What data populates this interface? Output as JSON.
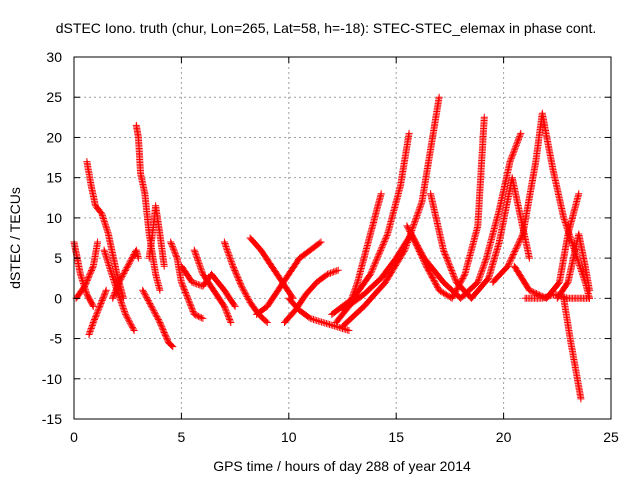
{
  "chart_data": {
    "type": "scatter",
    "title": "dSTEC Iono. truth (chur, Lon=265, Lat=58, h=-18): STEC-STEC_elemax in phase cont.",
    "xlabel": "GPS time / hours of day 288 of year 2014",
    "ylabel": "dSTEC  / TECUs",
    "xlim": [
      0,
      25
    ],
    "ylim": [
      -15,
      30
    ],
    "xticks": [
      0,
      5,
      10,
      15,
      20,
      25
    ],
    "yticks": [
      -15,
      -10,
      -5,
      0,
      5,
      10,
      15,
      20,
      25,
      30
    ],
    "grid": true,
    "marker": "+",
    "color": "#ff0000",
    "series": [
      {
        "x": [
          0.0,
          0.3,
          0.6,
          0.9
        ],
        "y": [
          7.0,
          3.0,
          0.5,
          -1.0
        ]
      },
      {
        "x": [
          0.1,
          0.5,
          0.9,
          1.1
        ],
        "y": [
          0.0,
          1.5,
          4.0,
          7.0
        ]
      },
      {
        "x": [
          0.6,
          0.8,
          1.0,
          1.3,
          1.6,
          2.0,
          2.3
        ],
        "y": [
          17.0,
          14.0,
          11.5,
          10.5,
          8.0,
          3.0,
          0.0
        ]
      },
      {
        "x": [
          0.7,
          0.9,
          1.2,
          1.5
        ],
        "y": [
          -4.5,
          -3.0,
          -1.0,
          1.0
        ]
      },
      {
        "x": [
          1.4,
          1.7,
          2.0,
          2.4,
          2.8
        ],
        "y": [
          6.0,
          3.5,
          1.0,
          -2.0,
          -4.0
        ]
      },
      {
        "x": [
          1.8,
          2.1,
          2.5,
          2.9,
          3.0
        ],
        "y": [
          0.0,
          2.0,
          4.0,
          6.0,
          5.0
        ]
      },
      {
        "x": [
          2.9,
          3.0,
          3.1,
          3.3,
          3.5,
          3.8,
          4.0
        ],
        "y": [
          21.5,
          20.0,
          15.5,
          13.0,
          8.0,
          3.0,
          1.0
        ]
      },
      {
        "x": [
          3.5,
          3.7,
          3.8,
          4.0,
          4.2
        ],
        "y": [
          5.0,
          9.0,
          11.5,
          8.0,
          4.0
        ]
      },
      {
        "x": [
          3.2,
          3.6,
          4.0,
          4.4,
          4.6
        ],
        "y": [
          1.0,
          -1.0,
          -3.0,
          -5.5,
          -6.0
        ]
      },
      {
        "x": [
          4.5,
          4.8,
          5.0,
          5.3,
          5.6,
          6.0
        ],
        "y": [
          7.0,
          5.0,
          2.0,
          0.0,
          -2.0,
          -2.5
        ]
      },
      {
        "x": [
          5.0,
          5.5,
          6.0,
          6.4,
          7.0,
          7.5
        ],
        "y": [
          4.0,
          2.0,
          1.5,
          3.0,
          1.0,
          -1.0
        ]
      },
      {
        "x": [
          5.6,
          6.0,
          6.5,
          7.0,
          7.3
        ],
        "y": [
          6.0,
          3.0,
          1.0,
          -1.0,
          -3.0
        ]
      },
      {
        "x": [
          7.0,
          7.4,
          7.8,
          8.2,
          8.6,
          9.0
        ],
        "y": [
          7.0,
          4.0,
          1.5,
          -0.5,
          -2.0,
          -3.0
        ]
      },
      {
        "x": [
          8.2,
          8.7,
          9.2,
          9.7,
          10.2
        ],
        "y": [
          7.5,
          6.0,
          4.0,
          2.0,
          0.0
        ]
      },
      {
        "x": [
          8.5,
          9.0,
          9.5,
          10.0,
          10.5,
          11.0,
          11.5
        ],
        "y": [
          -2.0,
          -1.0,
          1.0,
          3.0,
          5.0,
          6.0,
          7.0
        ]
      },
      {
        "x": [
          9.8,
          10.3,
          10.8,
          11.3,
          11.8,
          12.3
        ],
        "y": [
          -3.0,
          -1.5,
          0.5,
          2.0,
          3.0,
          3.5
        ]
      },
      {
        "x": [
          10.0,
          10.5,
          11.0,
          11.6,
          12.2,
          12.8
        ],
        "y": [
          0.0,
          -1.5,
          -2.5,
          -3.0,
          -3.5,
          -4.0
        ]
      },
      {
        "x": [
          12.2,
          12.8,
          13.2,
          13.6,
          14.0,
          14.3
        ],
        "y": [
          -3.0,
          -1.0,
          2.0,
          6.0,
          10.0,
          13.0
        ]
      },
      {
        "x": [
          12.0,
          13.0,
          13.8,
          14.6,
          15.2,
          15.6
        ],
        "y": [
          -2.0,
          0.0,
          3.0,
          8.0,
          14.0,
          20.5
        ]
      },
      {
        "x": [
          12.5,
          13.5,
          14.5,
          15.4,
          16.2,
          17.0
        ],
        "y": [
          -3.5,
          -1.0,
          2.0,
          6.0,
          12.0,
          25.0
        ]
      },
      {
        "x": [
          12.5,
          13.5,
          14.3,
          15.0,
          15.7,
          16.4,
          17.0,
          17.6,
          18.2,
          18.8,
          19.1
        ],
        "y": [
          -1.5,
          0.5,
          2.5,
          5.0,
          8.0,
          4.0,
          1.0,
          0.0,
          3.0,
          9.0,
          22.5
        ]
      },
      {
        "x": [
          15.5,
          16.3,
          17.2,
          18.0,
          18.8,
          19.2,
          19.8,
          20.3,
          20.8
        ],
        "y": [
          9.0,
          5.0,
          2.0,
          0.0,
          2.0,
          5.0,
          11.0,
          17.0,
          20.5
        ]
      },
      {
        "x": [
          16.6,
          17.2,
          17.8,
          18.5,
          19.3,
          19.8,
          20.4,
          20.8,
          21.2
        ],
        "y": [
          13.0,
          6.0,
          2.0,
          0.0,
          2.5,
          7.0,
          15.0,
          10.0,
          5.0
        ]
      },
      {
        "x": [
          19.5,
          20.2,
          20.9,
          21.5,
          21.8,
          22.3,
          22.8,
          23.3,
          23.8,
          24.0
        ],
        "y": [
          2.0,
          4.0,
          8.0,
          17.0,
          23.0,
          16.0,
          10.0,
          6.0,
          2.0,
          0.0
        ]
      },
      {
        "x": [
          20.5,
          21.2,
          22.0,
          22.6,
          23.0,
          23.5
        ],
        "y": [
          4.0,
          1.0,
          0.0,
          2.0,
          8.0,
          13.0
        ]
      },
      {
        "x": [
          21.0,
          21.8,
          22.4,
          23.0,
          23.5,
          24.0
        ],
        "y": [
          0.0,
          0.0,
          0.5,
          0.0,
          0.0,
          0.0
        ]
      },
      {
        "x": [
          22.8,
          23.1,
          23.3,
          23.5,
          23.6
        ],
        "y": [
          0.0,
          -5.0,
          -8.0,
          -11.0,
          -12.5
        ]
      },
      {
        "x": [
          22.5,
          23.0,
          23.5,
          23.8,
          24.0
        ],
        "y": [
          0.0,
          2.0,
          8.0,
          4.0,
          1.0
        ]
      }
    ]
  }
}
